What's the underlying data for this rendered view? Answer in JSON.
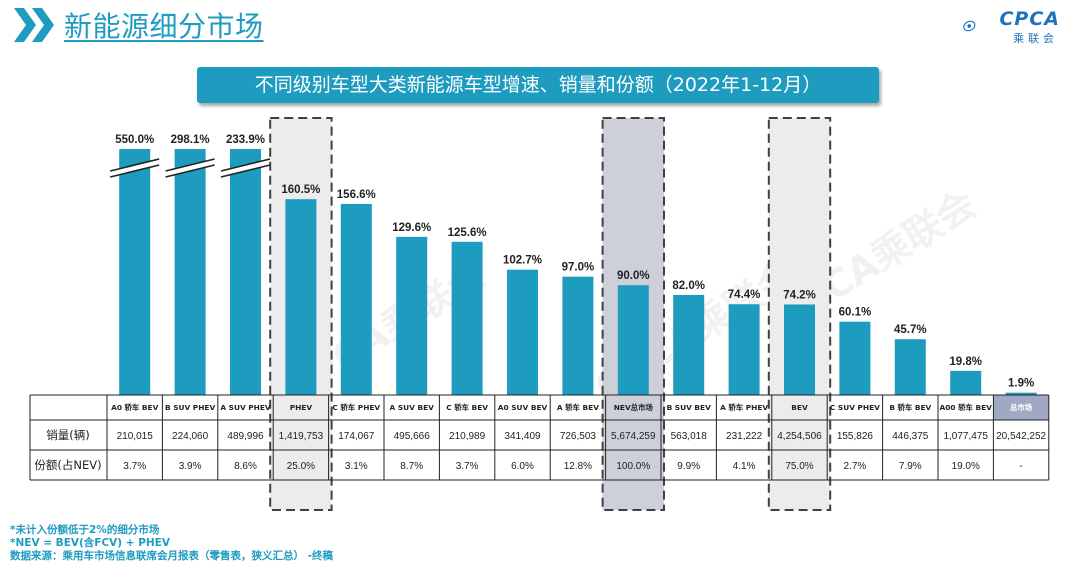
{
  "header": {
    "title": "新能源细分市场",
    "logo_text": "CPCA",
    "logo_sub": "乘联会"
  },
  "subtitle": "不同级别车型大类新能源车型增速、销量和份额（2022年1-12月）",
  "table": {
    "row_labels": [
      "销量(辆)",
      "份额(占NEV)"
    ]
  },
  "watermark": "CPCA乘联会",
  "footnotes": [
    "*未计入份额低于2%的细分市场",
    "*NEV = BEV(含FCV) + PHEV",
    "数据来源：乘用车市场信息联席会月报表（零售表，狭义汇总） -终稿"
  ],
  "colors": {
    "accent": "#1e9cc0",
    "highlight_light": "#ececec",
    "highlight_dark": "#cdd0d8",
    "total_header": "#9fa9c4"
  },
  "chart_data": {
    "type": "bar",
    "categories": [
      "A0 轿车 BEV",
      "B SUV PHEV",
      "A SUV PHEV",
      "PHEV",
      "C 轿车 PHEV",
      "A SUV BEV",
      "C 轿车 BEV",
      "A0 SUV BEV",
      "A 轿车 BEV",
      "NEV总市场",
      "B SUV BEV",
      "A 轿车 PHEV",
      "BEV",
      "C SUV PHEV",
      "B 轿车 BEV",
      "A00 轿车 BEV",
      "总市场"
    ],
    "growth_labels": [
      "550.0%",
      "298.1%",
      "233.9%",
      "160.5%",
      "156.6%",
      "129.6%",
      "125.6%",
      "102.7%",
      "97.0%",
      "90.0%",
      "82.0%",
      "74.4%",
      "74.2%",
      "60.1%",
      "45.7%",
      "19.8%",
      "1.9%"
    ],
    "values": [
      550.0,
      298.1,
      233.9,
      160.5,
      156.6,
      129.6,
      125.6,
      102.7,
      97.0,
      90.0,
      82.0,
      74.4,
      74.2,
      60.1,
      45.7,
      19.8,
      1.9
    ],
    "sales": [
      "210,015",
      "224,060",
      "489,996",
      "1,419,753",
      "174,067",
      "495,666",
      "210,989",
      "341,409",
      "726,503",
      "5,674,259",
      "563,018",
      "231,222",
      "4,254,506",
      "155,826",
      "446,375",
      "1,077,475",
      "20,542,252"
    ],
    "shares": [
      "3.7%",
      "3.9%",
      "8.6%",
      "25.0%",
      "3.1%",
      "8.7%",
      "3.7%",
      "6.0%",
      "12.8%",
      "100.0%",
      "9.9%",
      "4.1%",
      "75.0%",
      "2.7%",
      "7.9%",
      "19.0%",
      "-"
    ],
    "highlighted": [
      "PHEV",
      "NEV总市场",
      "BEV"
    ],
    "axis_break": "550.0%"
  }
}
